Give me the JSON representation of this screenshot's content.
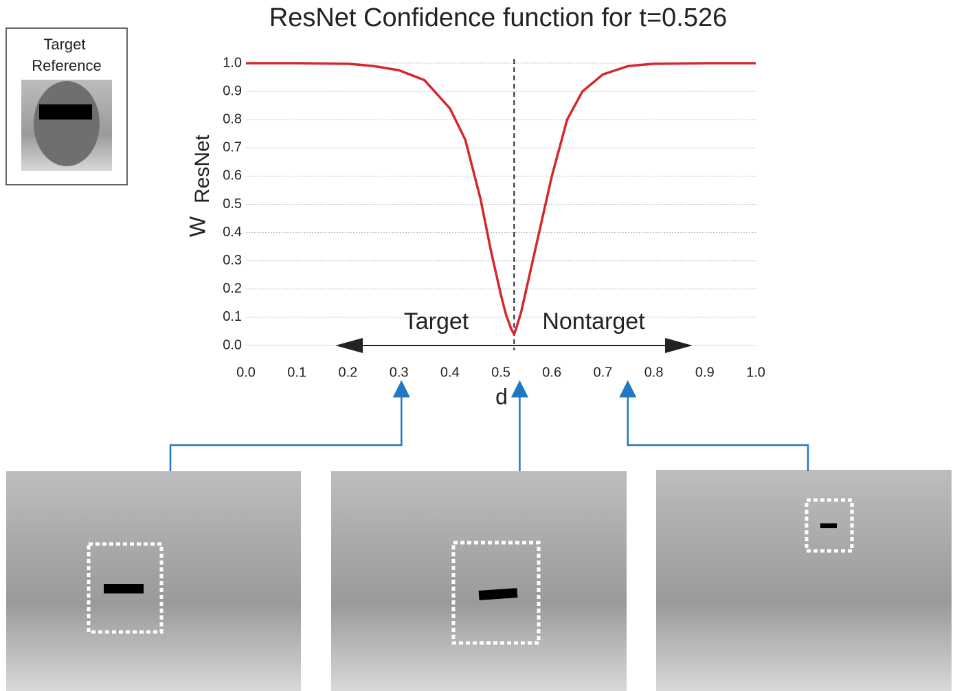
{
  "chart_data": {
    "type": "line",
    "title": "ResNet Confidence function for t=0.526",
    "x_label": "d",
    "y_label": "W",
    "y_label_sub": "ResNet",
    "reference_label": "Target Reference",
    "left_region_label": "Target",
    "right_region_label": "Nontarget",
    "threshold": 0.526,
    "examples": [
      0.305,
      0.537,
      0.749
    ],
    "xlim": [
      0,
      1
    ],
    "ylim": [
      0,
      1
    ],
    "xticks": [
      {
        "value": 0,
        "label": "0.0"
      },
      0.1,
      0.2,
      0.3,
      0.4,
      0.5,
      0.6,
      0.7,
      0.8,
      0.9,
      {
        "value": 1,
        "label": "1.0"
      }
    ],
    "yticks": [
      {
        "value": 0,
        "label": "0.0"
      },
      0.1,
      0.2,
      0.3,
      0.4,
      0.5,
      0.6,
      0.7,
      0.8,
      0.9,
      {
        "value": 1,
        "label": "1.0"
      }
    ],
    "grid": true,
    "series": [
      {
        "color": "#d7262b",
        "x": [
          0,
          0.1,
          0.2,
          0.25,
          0.3,
          0.35,
          0.4,
          0.43,
          0.46,
          0.48,
          0.5,
          0.51,
          0.52,
          0.526,
          0.53,
          0.54,
          0.55,
          0.57,
          0.6,
          0.63,
          0.66,
          0.7,
          0.75,
          0.8,
          0.9,
          1.0
        ],
        "values": [
          1.0,
          1.0,
          0.998,
          0.99,
          0.975,
          0.94,
          0.84,
          0.73,
          0.52,
          0.34,
          0.18,
          0.11,
          0.06,
          0.04,
          0.06,
          0.12,
          0.2,
          0.36,
          0.6,
          0.8,
          0.9,
          0.96,
          0.99,
          0.998,
          1.0,
          1.0
        ]
      }
    ]
  }
}
